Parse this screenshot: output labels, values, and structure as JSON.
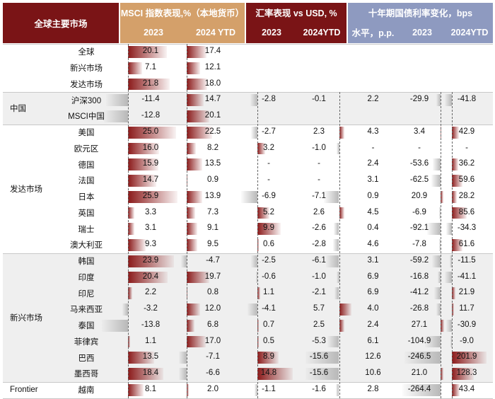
{
  "header": {
    "col_market": "全球主要市场",
    "msci_title": "MSCI 指数表现,%（本地货币）",
    "fx_title": "汇率表现 vs USD, %",
    "bond_title": "十年期国债利率变化，bps",
    "msci_2023": "2023",
    "msci_ytd": "2024 YTD",
    "fx_2023": "2023",
    "fx_ytd": "2024YTD",
    "bond_level": "水平，p.p.",
    "bond_2023": "2023",
    "bond_ytd": "2024YTD"
  },
  "groups": [
    "",
    "中国",
    "发达市场",
    "新兴市场",
    "Frontier"
  ],
  "chart_data": {
    "type": "table",
    "columns": [
      "MSCI 2023",
      "MSCI 2024 YTD",
      "汇率 2023",
      "汇率 2024YTD",
      "水平，p.p.",
      "国债 2023",
      "国债 2024YTD"
    ],
    "rows": [
      {
        "name": "全球",
        "group": 0,
        "msci23": "20.1",
        "msciytd": "17.4",
        "fx23": "",
        "fxytd": "",
        "lvl": "",
        "b23": "",
        "bytd": ""
      },
      {
        "name": "新兴市场",
        "group": 0,
        "msci23": "7.1",
        "msciytd": "12.1",
        "fx23": "",
        "fxytd": "",
        "lvl": "",
        "b23": "",
        "bytd": ""
      },
      {
        "name": "发达市场",
        "group": 0,
        "msci23": "21.8",
        "msciytd": "18.0",
        "fx23": "",
        "fxytd": "",
        "lvl": "",
        "b23": "",
        "bytd": ""
      },
      {
        "name": "沪深300",
        "group": 1,
        "msci23": "-11.4",
        "msciytd": "14.7",
        "fx23": "-2.8",
        "fxytd": "-0.1",
        "lvl": "2.2",
        "b23": "-29.9",
        "bytd": "-41.8"
      },
      {
        "name": "MSCI中国",
        "group": 1,
        "msci23": "-12.8",
        "msciytd": "20.1",
        "fx23": "",
        "fxytd": "",
        "lvl": "",
        "b23": "",
        "bytd": ""
      },
      {
        "name": "美国",
        "group": 2,
        "msci23": "25.0",
        "msciytd": "22.5",
        "fx23": "-2.7",
        "fxytd": "2.3",
        "lvl": "4.3",
        "b23": "3.4",
        "bytd": "42.9"
      },
      {
        "name": "欧元区",
        "group": 2,
        "msci23": "16.0",
        "msciytd": "8.2",
        "fx23": "3.2",
        "fxytd": "-1.0",
        "lvl": "-",
        "b23": "-",
        "bytd": "-"
      },
      {
        "name": "德国",
        "group": 2,
        "msci23": "15.9",
        "msciytd": "13.5",
        "fx23": "-",
        "fxytd": "-",
        "lvl": "2.4",
        "b23": "-53.6",
        "bytd": "36.2"
      },
      {
        "name": "法国",
        "group": 2,
        "msci23": "14.7",
        "msciytd": "0.9",
        "fx23": "-",
        "fxytd": "-",
        "lvl": "3.1",
        "b23": "-62.5",
        "bytd": "59.6"
      },
      {
        "name": "日本",
        "group": 2,
        "msci23": "25.9",
        "msciytd": "13.9",
        "fx23": "-6.9",
        "fxytd": "-7.1",
        "lvl": "0.9",
        "b23": "20.9",
        "bytd": "28.2"
      },
      {
        "name": "英国",
        "group": 2,
        "msci23": "3.3",
        "msciytd": "7.3",
        "fx23": "5.2",
        "fxytd": "2.6",
        "lvl": "4.5",
        "b23": "-6.9",
        "bytd": "85.6"
      },
      {
        "name": "瑞士",
        "group": 2,
        "msci23": "3.1",
        "msciytd": "9.1",
        "fx23": "9.9",
        "fxytd": "-2.6",
        "lvl": "0.4",
        "b23": "-92.1",
        "bytd": "-34.3"
      },
      {
        "name": "澳大利亚",
        "group": 2,
        "msci23": "9.3",
        "msciytd": "9.5",
        "fx23": "0.6",
        "fxytd": "-2.8",
        "lvl": "4.6",
        "b23": "-7.8",
        "bytd": "61.6"
      },
      {
        "name": "韩国",
        "group": 3,
        "msci23": "23.9",
        "msciytd": "-4.7",
        "fx23": "-2.5",
        "fxytd": "-6.1",
        "lvl": "3.1",
        "b23": "-59.2",
        "bytd": "-11.5"
      },
      {
        "name": "印度",
        "group": 3,
        "msci23": "20.4",
        "msciytd": "19.7",
        "fx23": "-0.6",
        "fxytd": "-1.0",
        "lvl": "6.9",
        "b23": "-16.8",
        "bytd": "-41.1"
      },
      {
        "name": "印尼",
        "group": 3,
        "msci23": "2.2",
        "msciytd": "0.8",
        "fx23": "1.1",
        "fxytd": "-2.1",
        "lvl": "6.9",
        "b23": "-41.2",
        "bytd": "21.9"
      },
      {
        "name": "马来西亚",
        "group": 3,
        "msci23": "-3.2",
        "msciytd": "12.0",
        "fx23": "-4.1",
        "fxytd": "5.7",
        "lvl": "4.0",
        "b23": "-26.8",
        "bytd": "11.7"
      },
      {
        "name": "泰国",
        "group": 3,
        "msci23": "-13.8",
        "msciytd": "6.8",
        "fx23": "0.7",
        "fxytd": "2.5",
        "lvl": "2.4",
        "b23": "27.1",
        "bytd": "-30.9"
      },
      {
        "name": "菲律宾",
        "group": 3,
        "msci23": "1.1",
        "msciytd": "17.0",
        "fx23": "0.5",
        "fxytd": "-5.3",
        "lvl": "6.1",
        "b23": "-104.9",
        "bytd": "-9.0"
      },
      {
        "name": "巴西",
        "group": 3,
        "msci23": "13.5",
        "msciytd": "-7.1",
        "fx23": "8.9",
        "fxytd": "-15.6",
        "lvl": "12.6",
        "b23": "-246.5",
        "bytd": "201.9"
      },
      {
        "name": "墨西哥",
        "group": 3,
        "msci23": "18.4",
        "msciytd": "-6.6",
        "fx23": "14.8",
        "fxytd": "-15.6",
        "lvl": "10.6",
        "b23": "21.0",
        "bytd": "128.3"
      },
      {
        "name": "越南",
        "group": 4,
        "msci23": "8.1",
        "msciytd": "2.0",
        "fx23": "-1.1",
        "fxytd": "-1.6",
        "lvl": "2.8",
        "b23": "-264.4",
        "bytd": "43.4"
      }
    ]
  },
  "colors": {
    "header_dark": "#7a1416",
    "header_msci": "#d4a06a",
    "header_fx": "#7a1416",
    "header_bond": "#8e9ac0",
    "bar_pos": "#8b1a1a",
    "bar_neg": "#b8b8b8",
    "band": "#efefef"
  }
}
